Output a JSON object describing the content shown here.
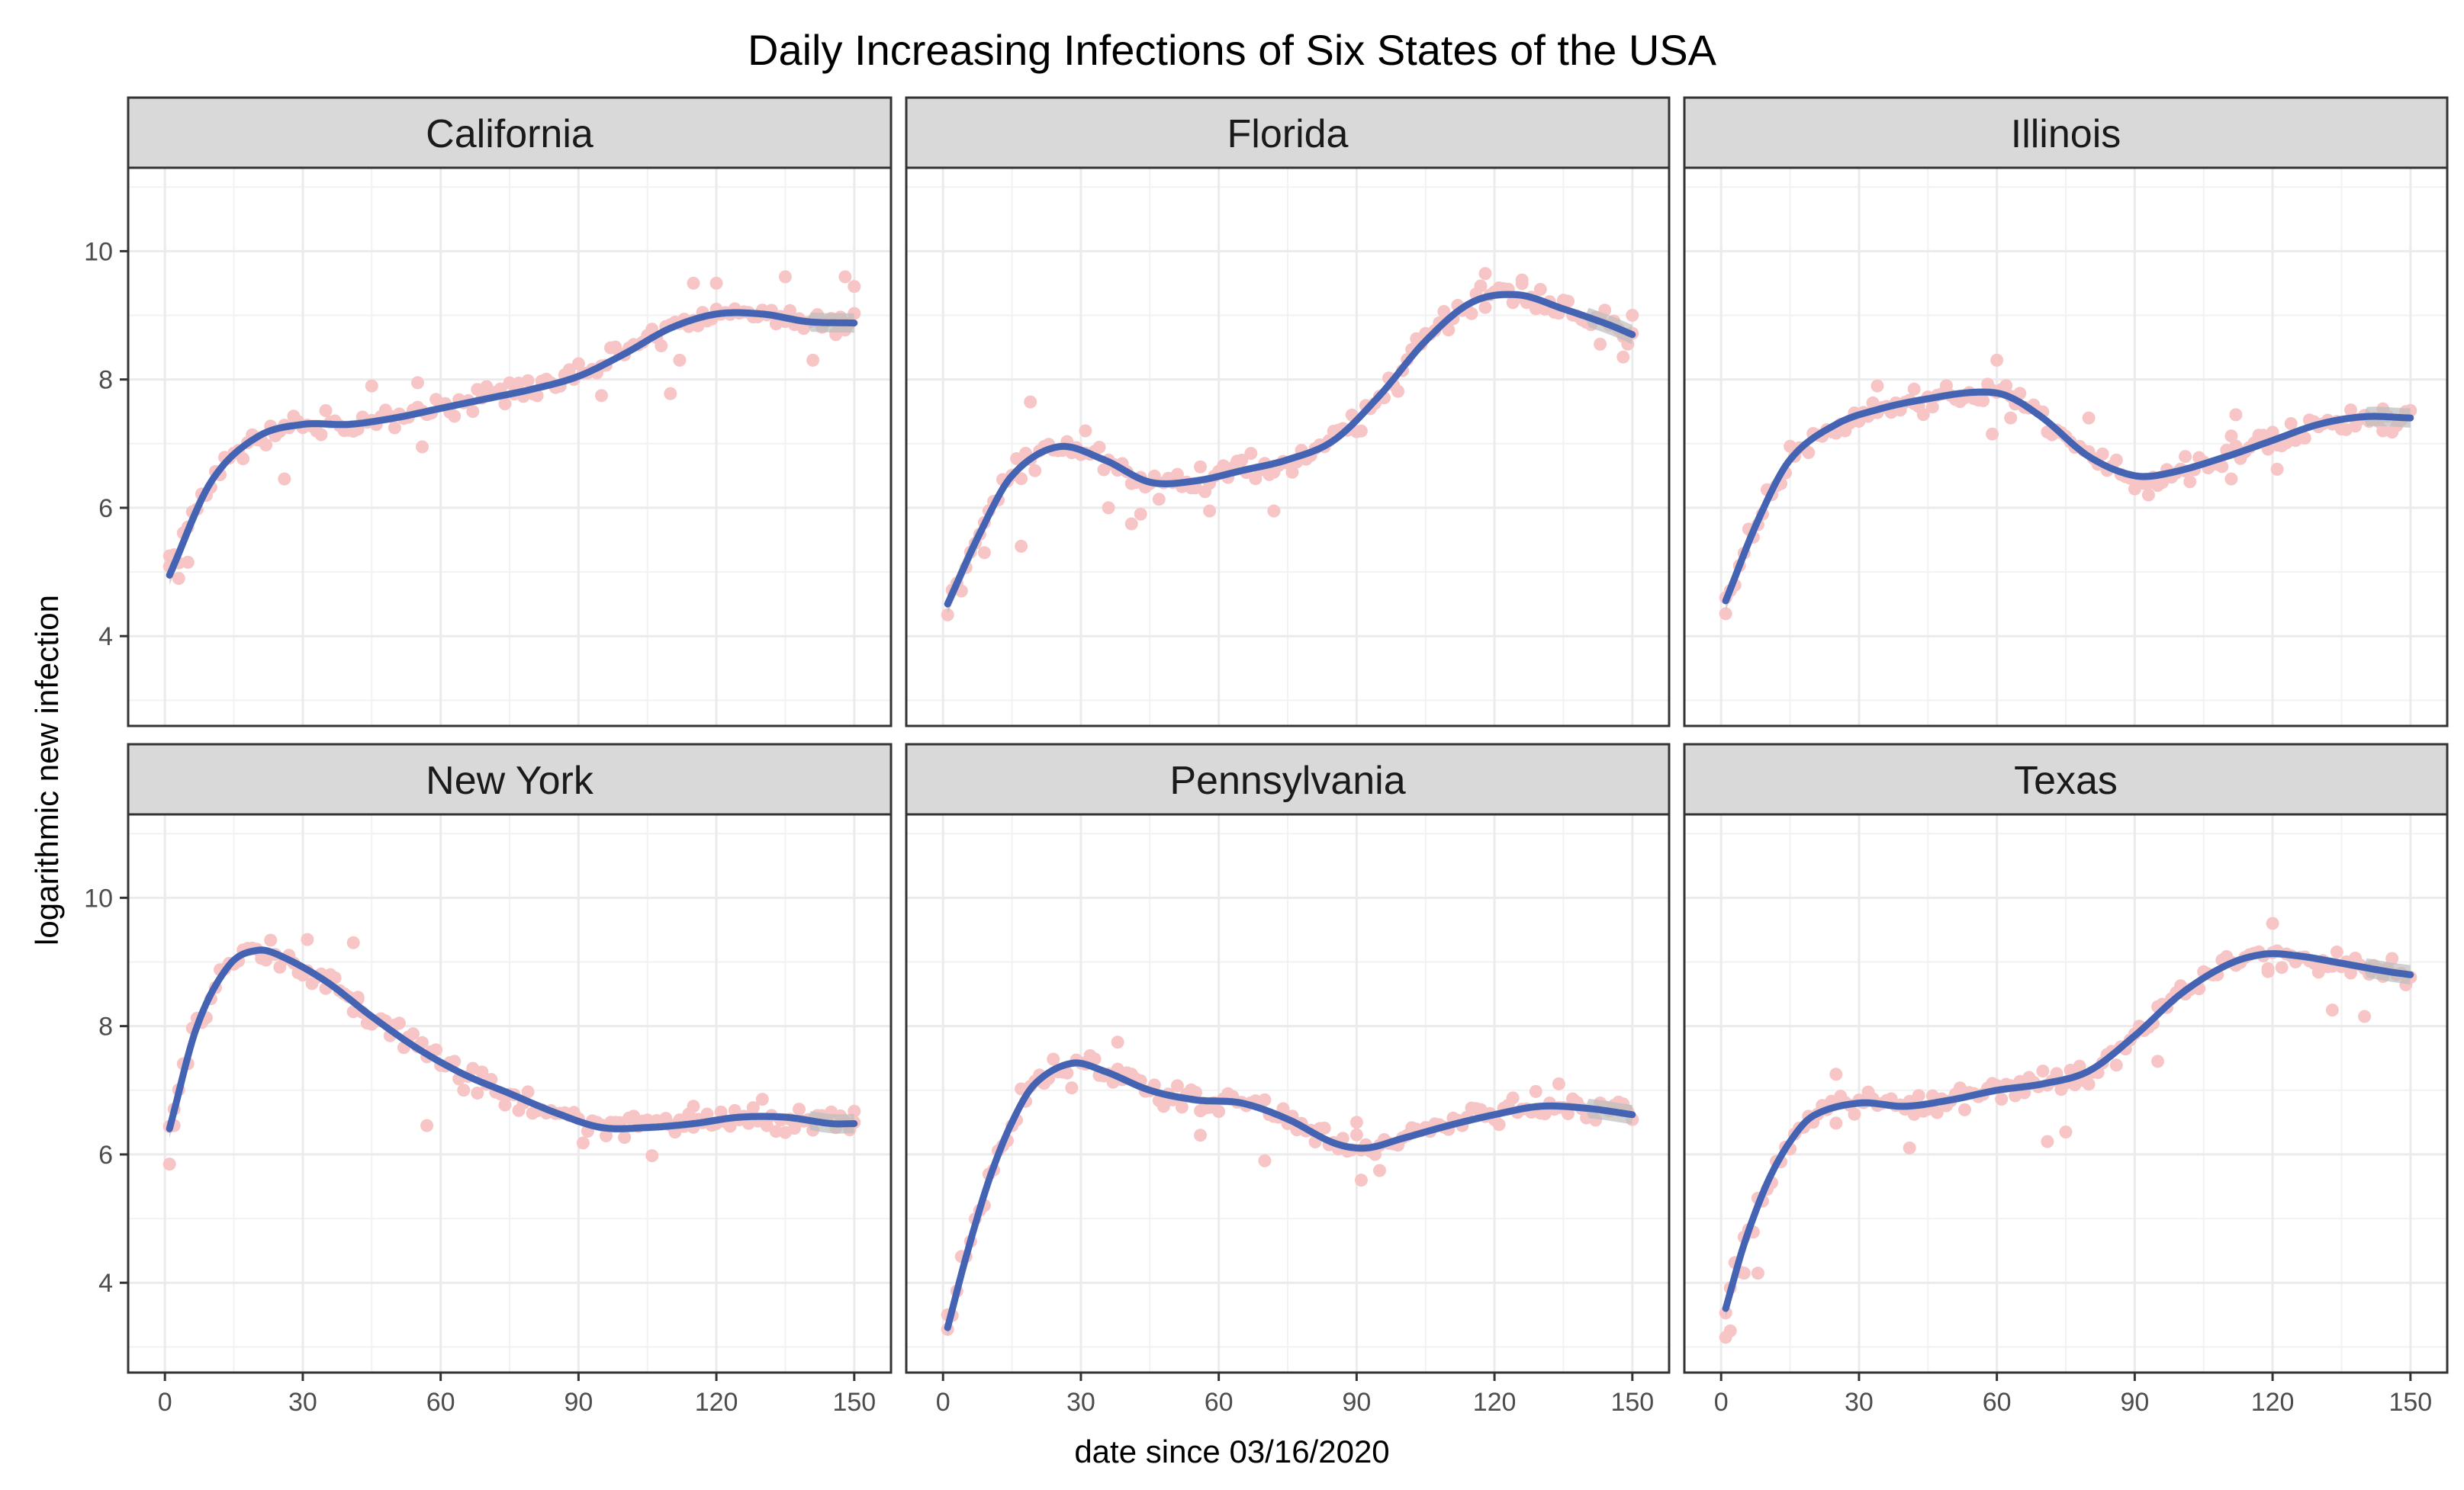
{
  "chart_data": {
    "type": "scatter",
    "title": "Daily Increasing Infections of Six States of the USA",
    "xlabel": "date since 03/16/2020",
    "ylabel": "logarithmic new infection",
    "xlim": [
      -8,
      158
    ],
    "ylim": [
      2.6,
      11.3
    ],
    "x_ticks": [
      0,
      30,
      60,
      90,
      120,
      150
    ],
    "y_ticks": [
      4,
      6,
      8,
      10
    ],
    "colors": {
      "points": "#F7C5C5",
      "smooth": "#4463B3",
      "ribbon": "#BEBEBE",
      "strip": "#D9D9D9",
      "grid": "#EBEBEB"
    },
    "panels": [
      {
        "state": "California",
        "knots_x": [
          1,
          10,
          20,
          30,
          40,
          50,
          60,
          70,
          80,
          90,
          100,
          110,
          120,
          130,
          140,
          150
        ],
        "knots_y": [
          4.95,
          6.4,
          7.1,
          7.3,
          7.3,
          7.4,
          7.55,
          7.7,
          7.85,
          8.05,
          8.4,
          8.8,
          9.02,
          9.02,
          8.9,
          8.88
        ],
        "outliers": [
          [
            1,
            5.25
          ],
          [
            3,
            4.9
          ],
          [
            5,
            5.15
          ],
          [
            26,
            6.45
          ],
          [
            45,
            7.9
          ],
          [
            55,
            7.95
          ],
          [
            56,
            6.95
          ],
          [
            95,
            7.75
          ],
          [
            110,
            7.78
          ],
          [
            112,
            8.3
          ],
          [
            115,
            9.5
          ],
          [
            120,
            9.5
          ],
          [
            135,
            9.6
          ],
          [
            141,
            8.3
          ],
          [
            146,
            8.7
          ],
          [
            148,
            9.6
          ],
          [
            150,
            9.45
          ]
        ]
      },
      {
        "state": "Florida",
        "knots_x": [
          1,
          8,
          15,
          25,
          35,
          45,
          55,
          65,
          75,
          85,
          95,
          105,
          115,
          125,
          135,
          145,
          150
        ],
        "knots_y": [
          4.5,
          5.6,
          6.5,
          6.95,
          6.75,
          6.4,
          6.42,
          6.58,
          6.75,
          7.05,
          7.75,
          8.6,
          9.2,
          9.32,
          9.1,
          8.85,
          8.7
        ],
        "outliers": [
          [
            9,
            5.3
          ],
          [
            17,
            5.4
          ],
          [
            19,
            7.65
          ],
          [
            31,
            7.2
          ],
          [
            36,
            6.0
          ],
          [
            41,
            5.75
          ],
          [
            43,
            5.9
          ],
          [
            58,
            5.95
          ],
          [
            72,
            5.95
          ],
          [
            118,
            9.65
          ],
          [
            126,
            9.55
          ],
          [
            143,
            8.55
          ],
          [
            148,
            8.35
          ],
          [
            150,
            9.0
          ]
        ]
      },
      {
        "state": "Illinois",
        "knots_x": [
          1,
          8,
          15,
          25,
          35,
          45,
          55,
          62,
          70,
          80,
          90,
          98,
          110,
          120,
          130,
          140,
          150
        ],
        "knots_y": [
          4.55,
          5.8,
          6.75,
          7.3,
          7.55,
          7.7,
          7.8,
          7.75,
          7.4,
          6.8,
          6.5,
          6.55,
          6.8,
          7.05,
          7.3,
          7.42,
          7.4
        ],
        "outliers": [
          [
            1,
            4.35
          ],
          [
            27,
            7.2
          ],
          [
            34,
            7.9
          ],
          [
            42,
            7.85
          ],
          [
            59,
            7.15
          ],
          [
            60,
            8.3
          ],
          [
            63,
            7.4
          ],
          [
            80,
            7.4
          ],
          [
            93,
            6.2
          ],
          [
            101,
            6.8
          ],
          [
            111,
            6.45
          ],
          [
            112,
            7.45
          ],
          [
            121,
            6.6
          ],
          [
            144,
            7.2
          ],
          [
            149,
            7.5
          ]
        ]
      },
      {
        "state": "New York",
        "knots_x": [
          1,
          7,
          14,
          20,
          25,
          35,
          45,
          55,
          65,
          75,
          85,
          95,
          105,
          115,
          125,
          135,
          145,
          150
        ],
        "knots_y": [
          6.4,
          8.0,
          8.95,
          9.18,
          9.1,
          8.7,
          8.15,
          7.65,
          7.25,
          6.95,
          6.65,
          6.42,
          6.42,
          6.48,
          6.58,
          6.58,
          6.48,
          6.48
        ],
        "outliers": [
          [
            1,
            5.85
          ],
          [
            2,
            6.45
          ],
          [
            31,
            9.35
          ],
          [
            41,
            9.3
          ],
          [
            42,
            8.45
          ],
          [
            57,
            6.45
          ],
          [
            106,
            5.98
          ],
          [
            115,
            6.75
          ],
          [
            150,
            6.5
          ]
        ]
      },
      {
        "state": "Pennsylvania",
        "knots_x": [
          1,
          5,
          10,
          15,
          20,
          28,
          35,
          45,
          55,
          65,
          75,
          85,
          92,
          100,
          110,
          120,
          130,
          140,
          150
        ],
        "knots_y": [
          3.3,
          4.4,
          5.6,
          6.5,
          7.1,
          7.42,
          7.3,
          7.0,
          6.85,
          6.8,
          6.55,
          6.18,
          6.1,
          6.25,
          6.45,
          6.62,
          6.75,
          6.72,
          6.62
        ],
        "outliers": [
          [
            1,
            3.5
          ],
          [
            38,
            7.75
          ],
          [
            56,
            6.3
          ],
          [
            70,
            5.9
          ],
          [
            90,
            6.5
          ],
          [
            91,
            5.6
          ],
          [
            95,
            5.75
          ],
          [
            134,
            7.1
          ]
        ]
      },
      {
        "state": "Texas",
        "knots_x": [
          1,
          5,
          10,
          15,
          20,
          30,
          40,
          50,
          60,
          70,
          80,
          90,
          100,
          110,
          118,
          125,
          135,
          145,
          150
        ],
        "knots_y": [
          3.6,
          4.6,
          5.55,
          6.2,
          6.6,
          6.8,
          6.75,
          6.85,
          7.0,
          7.1,
          7.3,
          7.85,
          8.5,
          8.95,
          9.12,
          9.1,
          8.98,
          8.85,
          8.8
        ],
        "outliers": [
          [
            1,
            3.15
          ],
          [
            2,
            3.25
          ],
          [
            5,
            4.15
          ],
          [
            8,
            4.15
          ],
          [
            25,
            7.25
          ],
          [
            41,
            6.1
          ],
          [
            71,
            6.2
          ],
          [
            75,
            6.35
          ],
          [
            95,
            7.45
          ],
          [
            119,
            8.85
          ],
          [
            120,
            9.6
          ],
          [
            130,
            9.0
          ],
          [
            133,
            8.25
          ],
          [
            140,
            8.15
          ]
        ]
      }
    ]
  }
}
